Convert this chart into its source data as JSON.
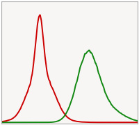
{
  "background_color": "#ffffff",
  "plot_bg_color": "#f8f6f4",
  "border_color": "#aaaaaa",
  "red_color": "#cc0000",
  "green_color": "#118811",
  "linewidth": 1.4,
  "n_points": 2000,
  "xlim": [
    0.0,
    1.0
  ],
  "ylim": [
    -0.01,
    1.05
  ],
  "figsize": [
    2.0,
    1.8
  ],
  "dpi": 100
}
